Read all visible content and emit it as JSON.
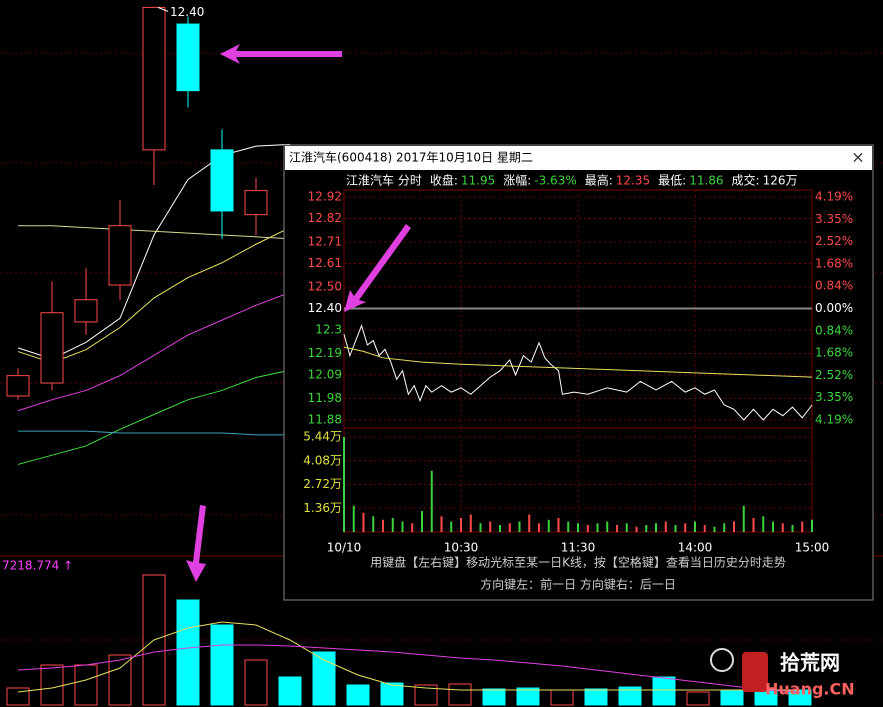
{
  "chart_data": [
    {
      "type": "candlestick",
      "ylim": [
        9.9,
        12.44
      ],
      "up_color": "#ff4a4a",
      "down_color": "#00ffff",
      "open": [
        10.3,
        10.37,
        10.7,
        10.9,
        11.63,
        12.31,
        11.63,
        11.28
      ],
      "close": [
        10.41,
        10.75,
        10.82,
        11.22,
        12.4,
        11.95,
        11.3,
        11.41
      ],
      "high": [
        10.45,
        10.92,
        10.99,
        11.36,
        12.4,
        12.35,
        11.74,
        11.48
      ],
      "low": [
        10.28,
        10.33,
        10.63,
        10.82,
        11.44,
        11.86,
        11.15,
        11.17
      ],
      "high_labels": [
        null,
        null,
        null,
        null,
        "12.40",
        null,
        null,
        null
      ],
      "ma_lines": [
        {
          "color": "#ffffff",
          "values": [
            10.56,
            10.5,
            10.59,
            10.72,
            11.17,
            11.47,
            11.6,
            11.65,
            11.66
          ]
        },
        {
          "color": "#e8e060",
          "values": [
            10.54,
            10.48,
            10.55,
            10.67,
            10.83,
            10.94,
            11.02,
            11.12,
            11.21
          ]
        },
        {
          "color": "#e040e0",
          "values": [
            10.22,
            10.28,
            10.33,
            10.41,
            10.52,
            10.63,
            10.71,
            10.79,
            10.86
          ]
        },
        {
          "color": "#40e040",
          "values": [
            9.93,
            9.98,
            10.03,
            10.12,
            10.2,
            10.28,
            10.33,
            10.4,
            10.44
          ]
        },
        {
          "color": "#d8d890",
          "values": [
            11.22,
            11.22,
            11.21,
            11.2,
            11.19,
            11.18,
            11.17,
            11.16,
            11.15
          ]
        },
        {
          "color": "#40a0c0",
          "values": [
            10.11,
            10.11,
            10.11,
            10.1,
            10.1,
            10.1,
            10.1,
            10.09,
            10.09
          ]
        }
      ]
    },
    {
      "type": "bar",
      "label": "7218.774 ↑",
      "ylim": [
        0,
        145
      ],
      "values": [
        17,
        40,
        40,
        50,
        130,
        105,
        80,
        45,
        28,
        53,
        20,
        22,
        20,
        21,
        16,
        17,
        15,
        16,
        18,
        28,
        13,
        15,
        15,
        15
      ],
      "colors": [
        "#ff4a4a",
        "#ff4a4a",
        "#ff4a4a",
        "#ff4a4a",
        "#ff4a4a",
        "#00ffff",
        "#00ffff",
        "#ff4a4a",
        "#00ffff",
        "#00ffff",
        "#00ffff",
        "#00ffff",
        "#ff4a4a",
        "#ff4a4a",
        "#00ffff",
        "#00ffff",
        "#ff4a4a",
        "#00ffff",
        "#00ffff",
        "#00ffff",
        "#ff4a4a",
        "#00ffff",
        "#00ffff",
        "#00ffff"
      ],
      "ma_lines": [
        {
          "color": "#e8e060",
          "values": [
            13,
            17,
            25,
            37,
            65,
            77,
            83,
            80,
            65,
            45,
            30,
            20,
            17,
            15,
            15,
            15,
            15,
            15,
            15,
            15,
            15,
            15,
            15,
            15
          ]
        },
        {
          "color": "#e040e0",
          "values": [
            35,
            37,
            40,
            45,
            53,
            57,
            60,
            60,
            59,
            57,
            55,
            53,
            50,
            47,
            45,
            42,
            39,
            35,
            31,
            27,
            23,
            19,
            15,
            13
          ]
        }
      ]
    },
    {
      "type": "line",
      "title": "江淮汽车(600418) 2017年10月10日 星期二",
      "close_button": "×",
      "header": [
        {
          "text": "江淮汽车 分时",
          "color": "#ffffff"
        },
        {
          "text": "收盘:",
          "color": "#ffffff"
        },
        {
          "text": "11.95",
          "color": "#3cd43c"
        },
        {
          "text": "涨幅:",
          "color": "#ffffff"
        },
        {
          "text": "-3.63%",
          "color": "#3cd43c"
        },
        {
          "text": "最高:",
          "color": "#ffffff"
        },
        {
          "text": "12.35",
          "color": "#ff4a4a"
        },
        {
          "text": "最低:",
          "color": "#ffffff"
        },
        {
          "text": "11.86",
          "color": "#3cd43c"
        },
        {
          "text": "成交:",
          "color": "#ffffff"
        },
        {
          "text": "126万",
          "color": "#ffffff"
        }
      ],
      "xlim": [
        0,
        240
      ],
      "xticks": [
        {
          "value": 0,
          "label": "10/10"
        },
        {
          "value": 60,
          "label": "10:30"
        },
        {
          "value": 120,
          "label": "11:30"
        },
        {
          "value": 180,
          "label": "14:00"
        },
        {
          "value": 240,
          "label": "15:00"
        }
      ],
      "ylim": [
        11.88,
        12.92
      ],
      "yticks": [
        {
          "value": 12.92,
          "label": "12.92"
        },
        {
          "value": 12.82,
          "label": "12.82"
        },
        {
          "value": 12.71,
          "label": "12.71"
        },
        {
          "value": 12.61,
          "label": "12.61"
        },
        {
          "value": 12.5,
          "label": "12.50"
        },
        {
          "value": 12.4,
          "label": "12.40"
        },
        12.3,
        12.19,
        12.09,
        11.98,
        11.88
      ],
      "y2lim": [
        -4.19,
        4.19
      ],
      "y2ticks": [
        {
          "value": 4.19,
          "label": "4.19%"
        },
        {
          "value": 3.35,
          "label": "3.35%"
        },
        {
          "value": 2.52,
          "label": "2.52%"
        },
        {
          "value": 1.68,
          "label": "1.68%"
        },
        {
          "value": 0.84,
          "label": "0.84%"
        },
        {
          "value": 0,
          "label": "0.00%"
        },
        {
          "value": -0.84,
          "label": "0.84%"
        },
        {
          "value": -1.68,
          "label": "1.68%"
        },
        {
          "value": -2.52,
          "label": "2.52%"
        },
        {
          "value": -3.35,
          "label": "3.35%"
        },
        {
          "value": -4.19,
          "label": "4.19%"
        }
      ],
      "series": [
        {
          "color": "#ffffff",
          "x": [
            0,
            3,
            6,
            9,
            12,
            15,
            18,
            21,
            24,
            27,
            30,
            33,
            36,
            39,
            42,
            45,
            50,
            55,
            60,
            65,
            70,
            75,
            80,
            85,
            88,
            92,
            96,
            100,
            103,
            106,
            110,
            112,
            118,
            125,
            135,
            145,
            152,
            160,
            168,
            175,
            180,
            185,
            190,
            195,
            200,
            205,
            210,
            215,
            220,
            225,
            230,
            235,
            240
          ],
          "values": [
            12.28,
            12.18,
            12.25,
            12.32,
            12.23,
            12.25,
            12.18,
            12.21,
            12.15,
            12.07,
            12.11,
            12.0,
            12.04,
            11.97,
            12.04,
            12.01,
            12.04,
            12.01,
            12.03,
            12.0,
            12.04,
            12.08,
            12.11,
            12.16,
            12.09,
            12.18,
            12.15,
            12.24,
            12.17,
            12.14,
            12.11,
            12.0,
            12.01,
            12.0,
            12.03,
            12.01,
            12.06,
            12.02,
            12.06,
            12.01,
            12.03,
            12.0,
            12.02,
            11.95,
            11.93,
            11.88,
            11.93,
            11.88,
            11.93,
            11.9,
            11.94,
            11.89,
            11.95
          ]
        },
        {
          "color": "#e8e060",
          "x": [
            0,
            10,
            20,
            40,
            60,
            90,
            120,
            150,
            180,
            210,
            240
          ],
          "values": [
            12.22,
            12.2,
            12.17,
            12.15,
            12.14,
            12.13,
            12.12,
            12.11,
            12.1,
            12.09,
            12.08
          ]
        }
      ],
      "volume": {
        "ylim": [
          0,
          5.44
        ],
        "yticks": [
          {
            "value": 5.44,
            "label": "5.44万"
          },
          {
            "value": 4.08,
            "label": "4.08万"
          },
          {
            "value": 2.72,
            "label": "2.72万"
          },
          {
            "value": 1.36,
            "label": "1.36万"
          }
        ],
        "x": [
          0,
          5,
          10,
          15,
          20,
          25,
          30,
          35,
          40,
          45,
          50,
          55,
          60,
          65,
          70,
          75,
          80,
          85,
          90,
          95,
          100,
          105,
          110,
          115,
          120,
          125,
          130,
          135,
          140,
          145,
          150,
          155,
          160,
          165,
          170,
          175,
          180,
          185,
          190,
          195,
          200,
          205,
          210,
          215,
          220,
          225,
          230,
          235,
          240
        ],
        "values": [
          5.44,
          1.5,
          1.1,
          0.9,
          0.7,
          0.8,
          0.6,
          0.5,
          1.2,
          3.5,
          0.9,
          0.6,
          0.8,
          1.0,
          0.5,
          0.6,
          0.4,
          0.5,
          0.6,
          1.0,
          0.5,
          0.7,
          0.8,
          0.6,
          0.5,
          0.4,
          0.5,
          0.6,
          0.4,
          0.5,
          0.3,
          0.4,
          0.5,
          0.6,
          0.4,
          0.5,
          0.6,
          0.4,
          0.3,
          0.5,
          0.6,
          1.5,
          0.8,
          0.9,
          0.6,
          0.5,
          0.4,
          0.6,
          0.7
        ],
        "colors": [
          "#3cd43c",
          "#3cd43c",
          "#ff4a4a",
          "#3cd43c",
          "#ff4a4a",
          "#3cd43c",
          "#3cd43c",
          "#ff4a4a",
          "#3cd43c",
          "#3cd43c",
          "#ff4a4a",
          "#3cd43c",
          "#ff4a4a",
          "#ff4a4a",
          "#3cd43c",
          "#ff4a4a",
          "#3cd43c",
          "#ff4a4a",
          "#3cd43c",
          "#ff4a4a",
          "#ff4a4a",
          "#3cd43c",
          "#ff4a4a",
          "#3cd43c",
          "#3cd43c",
          "#ff4a4a",
          "#3cd43c",
          "#3cd43c",
          "#ff4a4a",
          "#3cd43c",
          "#ff4a4a",
          "#3cd43c",
          "#3cd43c",
          "#ff4a4a",
          "#3cd43c",
          "#ff4a4a",
          "#3cd43c",
          "#ff4a4a",
          "#3cd43c",
          "#3cd43c",
          "#ff4a4a",
          "#3cd43c",
          "#ff4a4a",
          "#3cd43c",
          "#3cd43c",
          "#ff4a4a",
          "#3cd43c",
          "#ff4a4a",
          "#3cd43c"
        ]
      },
      "footer": [
        "用键盘【左右键】移动光标至某一日K线，按【空格键】查看当日历史分时走势",
        "方向键左：前一日   方向键右：后一日"
      ]
    }
  ],
  "watermark": [
    "拾荒网",
    "Huang.CN"
  ]
}
